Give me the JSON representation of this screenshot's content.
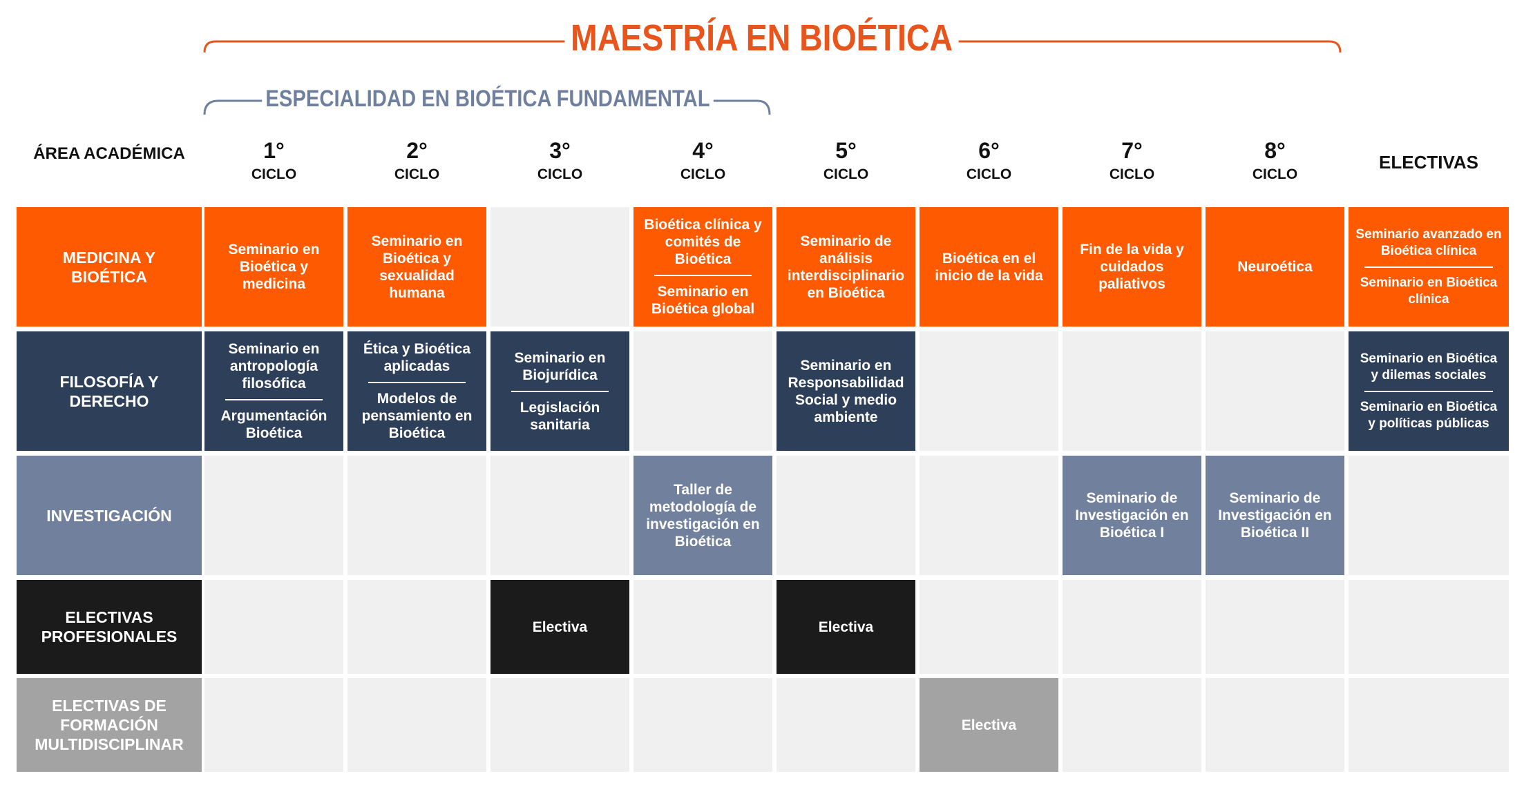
{
  "titles": {
    "main": "MAESTRÍA EN BIOÉTICA",
    "sub": "ESPECIALIDAD EN BIOÉTICA FUNDAMENTAL"
  },
  "colors": {
    "accent_orange": "#fd5a01",
    "title_orange": "#e8551c",
    "navy": "#2e3f5a",
    "slate": "#71809c",
    "black": "#1b1b1b",
    "gray": "#a3a3a3",
    "empty": "#f0f0f0"
  },
  "header": {
    "area": "ÁREA ACADÉMICA",
    "electivas": "ELECTIVAS",
    "cycles": [
      {
        "num": "1°",
        "label": "CICLO"
      },
      {
        "num": "2°",
        "label": "CICLO"
      },
      {
        "num": "3°",
        "label": "CICLO"
      },
      {
        "num": "4°",
        "label": "CICLO"
      },
      {
        "num": "5°",
        "label": "CICLO"
      },
      {
        "num": "6°",
        "label": "CICLO"
      },
      {
        "num": "7°",
        "label": "CICLO"
      },
      {
        "num": "8°",
        "label": "CICLO"
      }
    ]
  },
  "rows": [
    {
      "area": "MEDICINA Y BIOÉTICA",
      "color": "orange",
      "cells": [
        [
          "Seminario en Bioética y medicina"
        ],
        [
          "Seminario en Bioética y sexualidad humana"
        ],
        [],
        [
          "Bioética clínica y comités de Bioética",
          "Seminario en Bioética global"
        ],
        [
          "Seminario de análisis interdisciplinario en Bioética"
        ],
        [
          "Bioética en el inicio de la vida"
        ],
        [
          "Fin de la vida y cuidados paliativos"
        ],
        [
          "Neuroética"
        ],
        [
          "Seminario avanzado en Bioética clínica",
          "Seminario en Bioética clínica"
        ]
      ]
    },
    {
      "area": "FILOSOFÍA Y DERECHO",
      "color": "navy",
      "cells": [
        [
          "Seminario en antropología filosófica",
          "Argumentación Bioética"
        ],
        [
          "Ética y Bioética aplicadas",
          "Modelos de pensamiento en Bioética"
        ],
        [
          "Seminario en Biojurídica",
          "Legislación sanitaria"
        ],
        [],
        [
          "Seminario en Responsabilidad Social y medio ambiente"
        ],
        [],
        [],
        [],
        [
          "Seminario en Bioética y dilemas sociales",
          "Seminario en Bioética y políticas públicas"
        ]
      ]
    },
    {
      "area": "INVESTIGACIÓN",
      "color": "slate",
      "cells": [
        [],
        [],
        [],
        [
          "Taller de metodología de investigación en Bioética"
        ],
        [],
        [],
        [
          "Seminario de Investigación en Bioética I"
        ],
        [
          "Seminario de Investigación en Bioética II"
        ],
        []
      ]
    },
    {
      "area": "ELECTIVAS PROFESIONALES",
      "color": "black",
      "cells": [
        [],
        [],
        [
          "Electiva"
        ],
        [],
        [
          "Electiva"
        ],
        [],
        [],
        [],
        []
      ]
    },
    {
      "area": "ELECTIVAS DE FORMACIÓN MULTIDISCIPLINAR",
      "color": "gray",
      "cells": [
        [],
        [],
        [],
        [],
        [],
        [
          "Electiva"
        ],
        [],
        [],
        []
      ]
    }
  ]
}
